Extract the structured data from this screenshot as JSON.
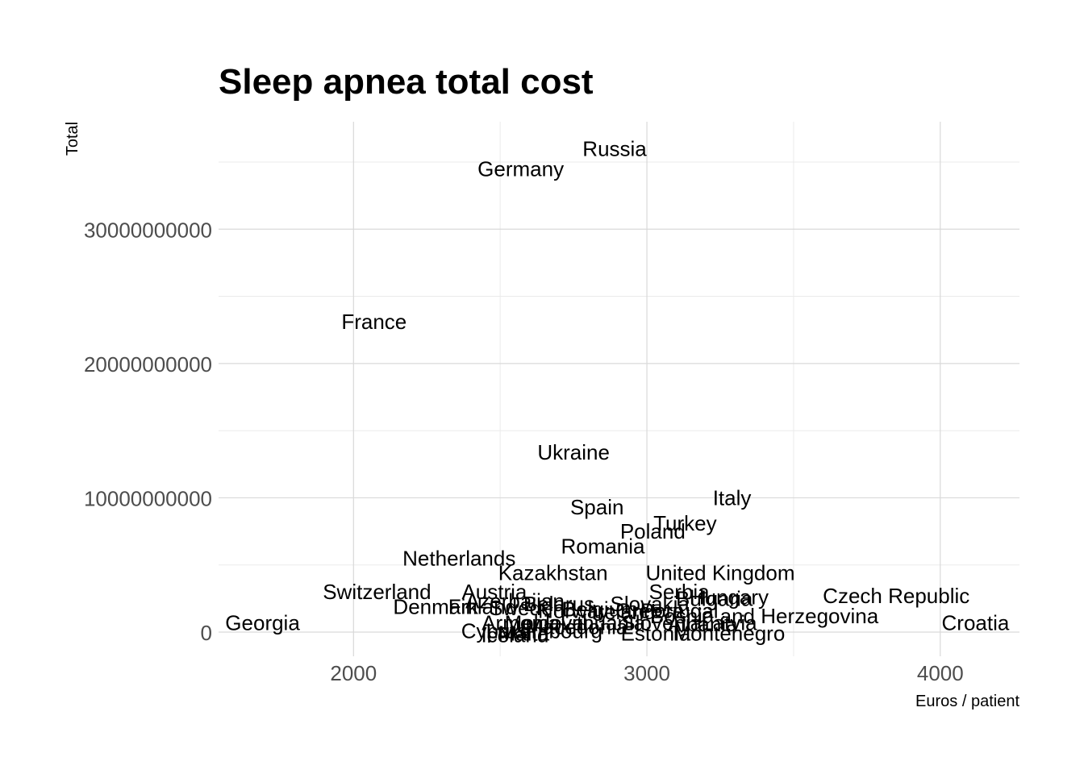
{
  "chart_data": {
    "type": "scatter",
    "title": "Sleep apnea total cost",
    "xlabel": "Euros / patient",
    "ylabel": "Total",
    "xlim": [
      1540,
      4270
    ],
    "ylim": [
      -1800000000,
      38000000000
    ],
    "x_ticks": [
      2000,
      3000,
      4000
    ],
    "x_tick_labels": [
      "2000",
      "3000",
      "4000"
    ],
    "y_ticks": [
      0,
      10000000000,
      20000000000,
      30000000000
    ],
    "y_tick_labels": [
      "0",
      "10000000000",
      "20000000000",
      "30000000000"
    ],
    "grid": true,
    "marker": "text-label",
    "points": [
      {
        "label": "Russia",
        "x": 2890,
        "y": 36000000000
      },
      {
        "label": "Germany",
        "x": 2570,
        "y": 34500000000
      },
      {
        "label": "France",
        "x": 2070,
        "y": 23100000000
      },
      {
        "label": "Ukraine",
        "x": 2750,
        "y": 13400000000
      },
      {
        "label": "Italy",
        "x": 3290,
        "y": 10000000000
      },
      {
        "label": "Spain",
        "x": 2830,
        "y": 9300000000
      },
      {
        "label": "Turkey",
        "x": 3130,
        "y": 8100000000
      },
      {
        "label": "Poland",
        "x": 3020,
        "y": 7500000000
      },
      {
        "label": "Romania",
        "x": 2850,
        "y": 6400000000
      },
      {
        "label": "Netherlands",
        "x": 2360,
        "y": 5500000000
      },
      {
        "label": "Kazakhstan",
        "x": 2680,
        "y": 4400000000
      },
      {
        "label": "United Kingdom",
        "x": 3250,
        "y": 4400000000
      },
      {
        "label": "Switzerland",
        "x": 2080,
        "y": 3000000000
      },
      {
        "label": "Austria",
        "x": 2480,
        "y": 3000000000
      },
      {
        "label": "Serbia",
        "x": 3110,
        "y": 3000000000
      },
      {
        "label": "Bulgaria",
        "x": 3230,
        "y": 2500000000
      },
      {
        "label": "Hungary",
        "x": 3280,
        "y": 2600000000
      },
      {
        "label": "Czech Republic",
        "x": 3850,
        "y": 2700000000
      },
      {
        "label": "Azerbaijan",
        "x": 2550,
        "y": 2300000000
      },
      {
        "label": "Belarus",
        "x": 2700,
        "y": 2100000000
      },
      {
        "label": "Slovakia",
        "x": 3010,
        "y": 2100000000
      },
      {
        "label": "Denmark",
        "x": 2280,
        "y": 1900000000
      },
      {
        "label": "Finland",
        "x": 2440,
        "y": 1900000000
      },
      {
        "label": "Sweden",
        "x": 2590,
        "y": 1800000000
      },
      {
        "label": "Norway",
        "x": 2750,
        "y": 1600000000
      },
      {
        "label": "Ireland",
        "x": 2920,
        "y": 1500000000
      },
      {
        "label": "Belgium",
        "x": 2840,
        "y": 1700000000
      },
      {
        "label": "Greece",
        "x": 3010,
        "y": 1600000000
      },
      {
        "label": "Portugal",
        "x": 3110,
        "y": 1600000000
      },
      {
        "label": "Bosnia and Herzegovina",
        "x": 3400,
        "y": 1200000000
      },
      {
        "label": "Georgia",
        "x": 1690,
        "y": 700000000
      },
      {
        "label": "Croatia",
        "x": 4120,
        "y": 700000000
      },
      {
        "label": "Armenia",
        "x": 2570,
        "y": 700000000
      },
      {
        "label": "Moldova",
        "x": 2650,
        "y": 700000000
      },
      {
        "label": "Lithuania",
        "x": 2850,
        "y": 700000000
      },
      {
        "label": "Slovenia",
        "x": 3050,
        "y": 700000000
      },
      {
        "label": "Latvia",
        "x": 3280,
        "y": 700000000
      },
      {
        "label": "Albania",
        "x": 3190,
        "y": 600000000
      },
      {
        "label": "Macedonia",
        "x": 2760,
        "y": 400000000
      },
      {
        "label": "Cyprus",
        "x": 2480,
        "y": 100000000
      },
      {
        "label": "Luxembourg",
        "x": 2650,
        "y": 100000000
      },
      {
        "label": "Malta",
        "x": 2580,
        "y": -100000000
      },
      {
        "label": "Iceland",
        "x": 2550,
        "y": -200000000
      },
      {
        "label": "Estonia",
        "x": 3030,
        "y": -100000000
      },
      {
        "label": "Montenegro",
        "x": 3280,
        "y": -100000000
      }
    ]
  }
}
